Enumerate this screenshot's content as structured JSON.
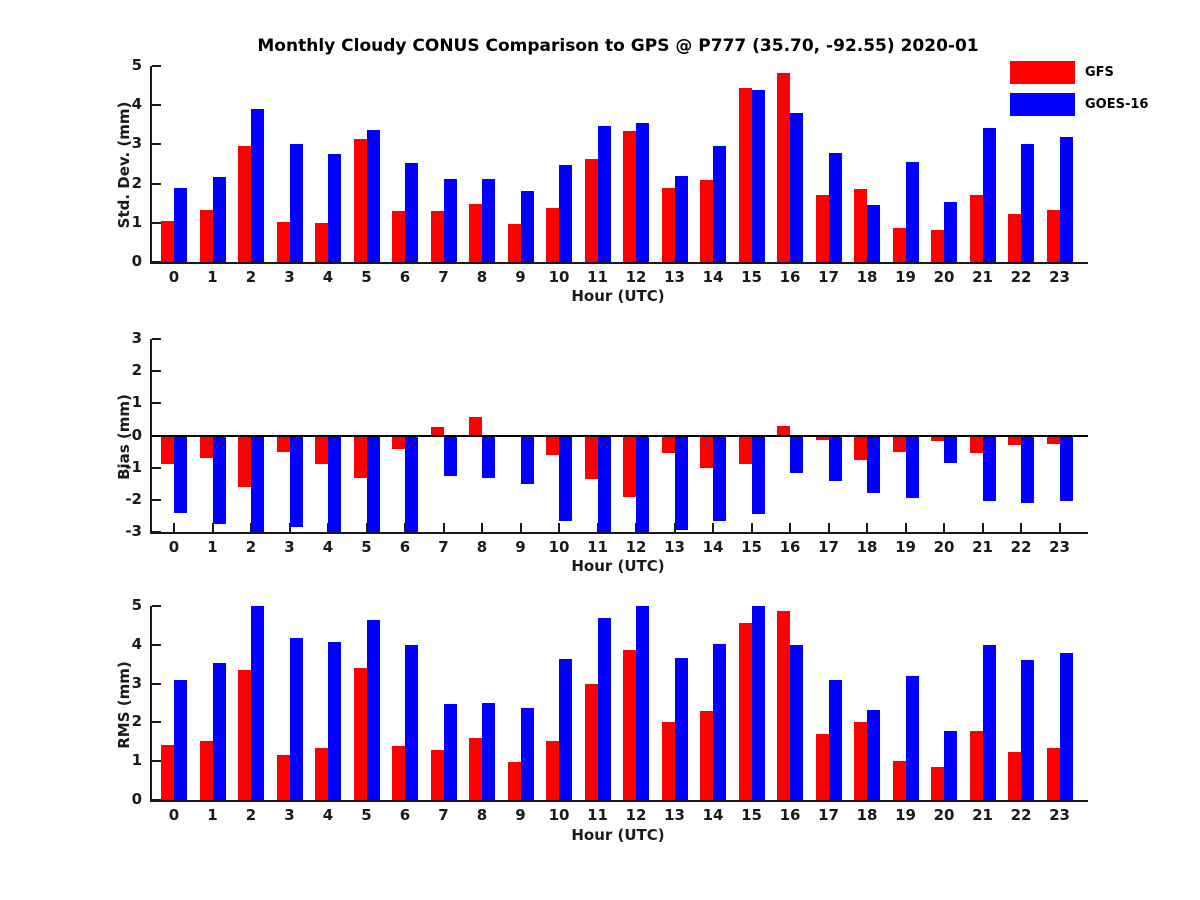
{
  "title": "Monthly Cloudy CONUS Comparison to GPS @ P777 (35.70, -92.55) 2020-01",
  "colors": {
    "gfs": "#ff0000",
    "goes16": "#0000ff",
    "axis": "#1a1a1a"
  },
  "legend": [
    {
      "label": "GFS",
      "color": "#ff0000"
    },
    {
      "label": "GOES-16",
      "color": "#0000ff"
    }
  ],
  "chart_data": [
    {
      "type": "bar",
      "panel": "std-dev",
      "ylabel": "Std. Dev. (mm)",
      "xlabel": "Hour (UTC)",
      "ylim": [
        0,
        5
      ],
      "yticks": [
        0,
        1,
        2,
        3,
        4,
        5
      ],
      "categories": [
        0,
        1,
        2,
        3,
        4,
        5,
        6,
        7,
        8,
        9,
        10,
        11,
        12,
        13,
        14,
        15,
        16,
        17,
        18,
        19,
        20,
        21,
        22,
        23
      ],
      "legend_position": "top-right-outside",
      "grid": false,
      "series": [
        {
          "name": "GFS",
          "color": "#ff0000",
          "values": [
            1.05,
            1.33,
            2.95,
            1.03,
            1.0,
            3.13,
            1.3,
            1.3,
            1.48,
            0.97,
            1.38,
            2.63,
            3.35,
            1.9,
            2.1,
            4.45,
            4.83,
            1.7,
            1.86,
            0.86,
            0.82,
            1.7,
            1.22,
            1.33
          ]
        },
        {
          "name": "GOES-16",
          "color": "#0000ff",
          "values": [
            1.9,
            2.18,
            3.9,
            3.0,
            2.76,
            3.37,
            2.52,
            2.12,
            2.12,
            1.82,
            2.48,
            3.46,
            3.55,
            2.2,
            2.97,
            4.4,
            3.8,
            2.79,
            1.45,
            2.55,
            1.52,
            3.42,
            3.0,
            3.18
          ]
        }
      ]
    },
    {
      "type": "bar",
      "panel": "bias",
      "ylabel": "Bias (mm)",
      "xlabel": "Hour (UTC)",
      "ylim": [
        -3,
        3
      ],
      "yticks": [
        -3,
        -2,
        -1,
        0,
        1,
        2,
        3
      ],
      "zero_line": true,
      "categories": [
        0,
        1,
        2,
        3,
        4,
        5,
        6,
        7,
        8,
        9,
        10,
        11,
        12,
        13,
        14,
        15,
        16,
        17,
        18,
        19,
        20,
        21,
        22,
        23
      ],
      "grid": false,
      "series": [
        {
          "name": "GFS",
          "color": "#ff0000",
          "values": [
            -0.9,
            -0.7,
            -1.6,
            -0.5,
            -0.9,
            -1.32,
            -0.42,
            0.25,
            0.58,
            -0.05,
            -0.6,
            -1.35,
            -1.92,
            -0.55,
            -1.0,
            -0.88,
            0.28,
            -0.15,
            -0.75,
            -0.5,
            -0.17,
            -0.55,
            -0.3,
            -0.25
          ]
        },
        {
          "name": "GOES-16",
          "color": "#0000ff",
          "values": [
            -2.42,
            -2.75,
            -3.0,
            -2.85,
            -3.0,
            -3.0,
            -3.0,
            -1.27,
            -1.33,
            -1.52,
            -2.65,
            -3.0,
            -3.0,
            -2.95,
            -2.65,
            -2.45,
            -1.18,
            -1.4,
            -1.8,
            -1.95,
            -0.85,
            -2.05,
            -2.1,
            -2.05
          ]
        }
      ]
    },
    {
      "type": "bar",
      "panel": "rms",
      "ylabel": "RMS (mm)",
      "xlabel": "Hour (UTC)",
      "ylim": [
        0,
        5
      ],
      "yticks": [
        0,
        1,
        2,
        3,
        4,
        5
      ],
      "categories": [
        0,
        1,
        2,
        3,
        4,
        5,
        6,
        7,
        8,
        9,
        10,
        11,
        12,
        13,
        14,
        15,
        16,
        17,
        18,
        19,
        20,
        21,
        22,
        23
      ],
      "grid": false,
      "series": [
        {
          "name": "GFS",
          "color": "#ff0000",
          "values": [
            1.42,
            1.52,
            3.35,
            1.17,
            1.33,
            3.4,
            1.4,
            1.3,
            1.6,
            0.97,
            1.52,
            2.98,
            3.87,
            2.0,
            2.3,
            4.57,
            4.87,
            1.7,
            2.02,
            1.0,
            0.85,
            1.77,
            1.25,
            1.33
          ]
        },
        {
          "name": "GOES-16",
          "color": "#0000ff",
          "values": [
            3.1,
            3.52,
            5.0,
            4.17,
            4.07,
            4.65,
            4.0,
            2.47,
            2.5,
            2.37,
            3.63,
            4.7,
            5.0,
            3.65,
            4.02,
            5.0,
            4.0,
            3.1,
            2.33,
            3.2,
            1.77,
            4.0,
            3.62,
            3.8
          ]
        }
      ]
    }
  ]
}
